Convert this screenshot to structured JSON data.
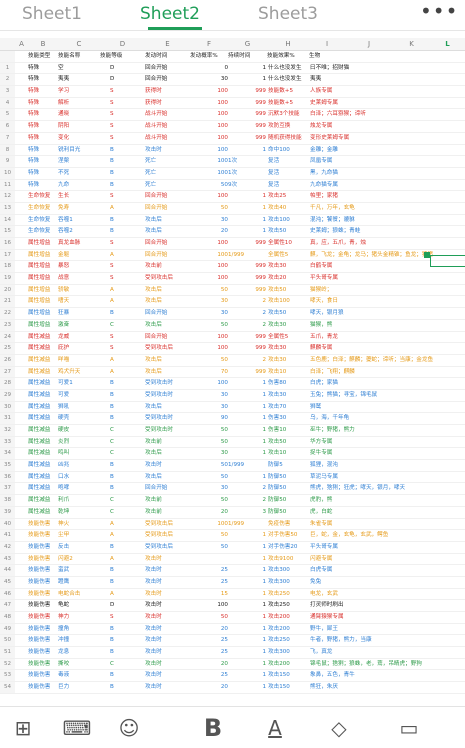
{
  "sheet_tabs": [
    "Sheet1",
    "Sheet2",
    "Sheet3"
  ],
  "active_tab": "Sheet2",
  "more_label": "•••",
  "columns": [
    "A",
    "B",
    "C",
    "D",
    "E",
    "F",
    "G",
    "H",
    "I",
    "J",
    "K",
    "L"
  ],
  "selected_column": "L",
  "headers": [
    "技能类型",
    "技能名称",
    "技能等级",
    "发动时间",
    "发动概率%",
    "持续时间",
    "技能效果%",
    "生物"
  ],
  "colors": {
    "black": "#222222",
    "red": "#d9302c",
    "blue": "#2f7fd3",
    "green": "#2e9b4a",
    "orange": "#e59a18",
    "accent": "#1f9e58"
  },
  "rows": [
    {
      "n": "1",
      "t": "特殊",
      "name": "空",
      "lvl": "D",
      "time": "回合开始",
      "prob": "0",
      "dur": "",
      "eff": "1",
      "bio": "什么也没发生",
      "extra": "曰不唯；招财猫",
      "c": "black"
    },
    {
      "n": "2",
      "t": "特殊",
      "name": "夷夷",
      "lvl": "D",
      "time": "回合开始",
      "prob": "30",
      "dur": "",
      "eff": "1",
      "bio": "什么也没发生",
      "extra": "夷夷",
      "c": "black"
    },
    {
      "n": "3",
      "t": "特殊",
      "name": "学习",
      "lvl": "S",
      "time": "获得时",
      "prob": "100",
      "dur": "",
      "eff": "999",
      "bio": "技能数+5",
      "extra": "人族专属",
      "c": "red"
    },
    {
      "n": "4",
      "t": "特殊",
      "name": "解析",
      "lvl": "S",
      "time": "获得时",
      "prob": "100",
      "dur": "",
      "eff": "999",
      "bio": "技能数+5",
      "extra": "史莱姆专属",
      "c": "red"
    },
    {
      "n": "5",
      "t": "特殊",
      "name": "通晓",
      "lvl": "S",
      "time": "战斗开始",
      "prob": "100",
      "dur": "",
      "eff": "999",
      "bio": "沉默3个技能",
      "extra": "白泽；六耳猕猴；谛听",
      "c": "red"
    },
    {
      "n": "6",
      "t": "特殊",
      "name": "阴阳",
      "lvl": "S",
      "time": "战斗开始",
      "prob": "100",
      "dur": "",
      "eff": "999",
      "bio": "攻防互换",
      "extra": "烛龙专属",
      "c": "red"
    },
    {
      "n": "7",
      "t": "特殊",
      "name": "变化",
      "lvl": "S",
      "time": "战斗开始",
      "prob": "100",
      "dur": "",
      "eff": "999",
      "bio": "随机获得技能",
      "extra": "变形史莱姆专属",
      "c": "red"
    },
    {
      "n": "8",
      "t": "特殊",
      "name": "锐利目光",
      "lvl": "B",
      "time": "攻击时",
      "prob": "100",
      "dur": "",
      "eff": "1",
      "bio": "命中100",
      "extra": "金雕；金雕",
      "c": "blue"
    },
    {
      "n": "9",
      "t": "特殊",
      "name": "涅槃",
      "lvl": "B",
      "time": "死亡",
      "prob": "100",
      "dur": "1次",
      "eff": "",
      "bio": "复活",
      "extra": "凤凰专属",
      "c": "blue"
    },
    {
      "n": "10",
      "t": "特殊",
      "name": "不死",
      "lvl": "B",
      "time": "死亡",
      "prob": "100",
      "dur": "1次",
      "eff": "",
      "bio": "复活",
      "extra": "黑，九命猫",
      "c": "blue"
    },
    {
      "n": "11",
      "t": "特殊",
      "name": "九命",
      "lvl": "B",
      "time": "死亡",
      "prob": "50",
      "dur": "9次",
      "eff": "",
      "bio": "复活",
      "extra": "九命猫专属",
      "c": "blue"
    },
    {
      "n": "12",
      "t": "生命恢复",
      "name": "生长",
      "lvl": "S",
      "time": "回合开始",
      "prob": "100",
      "dur": "",
      "eff": "1",
      "bio": "攻击25",
      "extra": "帕里；家猪",
      "c": "red"
    },
    {
      "n": "13",
      "t": "生命恢复",
      "name": "免寿",
      "lvl": "A",
      "time": "回合开始",
      "prob": "50",
      "dur": "",
      "eff": "1",
      "bio": "攻击40",
      "extra": "千凡，万年，玄龟",
      "c": "orange"
    },
    {
      "n": "14",
      "t": "生命恢复",
      "name": "吞噬1",
      "lvl": "B",
      "time": "攻击后",
      "prob": "30",
      "dur": "",
      "eff": "1",
      "bio": "攻击100",
      "extra": "混沌；饕餮；貔貅",
      "c": "blue"
    },
    {
      "n": "15",
      "t": "生命恢复",
      "name": "吞噬2",
      "lvl": "B",
      "time": "攻击后",
      "prob": "20",
      "dur": "",
      "eff": "1",
      "bio": "攻击50",
      "extra": "史莱姆；狼蛛；青蛙",
      "c": "blue"
    },
    {
      "n": "16",
      "t": "属性增益",
      "name": "真龙血脉",
      "lvl": "S",
      "time": "回合开始",
      "prob": "100",
      "dur": "",
      "eff": "999",
      "bio": "全属性10",
      "extra": "真，应，五爪，青，烛",
      "c": "red"
    },
    {
      "n": "17",
      "t": "属性增益",
      "name": "金躯",
      "lvl": "A",
      "time": "回合开始",
      "prob": "100",
      "dur": "1/999",
      "eff": "",
      "bio": "全属性5",
      "extra": "麒，飞龙；金龟；龙马；猪头金精锥；鱼龙；猪猪",
      "c": "orange"
    },
    {
      "n": "18",
      "t": "属性增益",
      "name": "暴怒",
      "lvl": "S",
      "time": "攻击前",
      "prob": "100",
      "dur": "",
      "eff": "999",
      "bio": "攻击30",
      "extra": "白鹤专属",
      "c": "red"
    },
    {
      "n": "19",
      "t": "属性增益",
      "name": "战意",
      "lvl": "S",
      "time": "受到攻击后",
      "prob": "100",
      "dur": "",
      "eff": "999",
      "bio": "攻击20",
      "extra": "平头哥专属",
      "c": "red"
    },
    {
      "n": "20",
      "t": "属性增益",
      "name": "骄敏",
      "lvl": "A",
      "time": "攻击后",
      "prob": "50",
      "dur": "",
      "eff": "999",
      "bio": "攻击50",
      "extra": "猫猴岭；",
      "c": "orange"
    },
    {
      "n": "21",
      "t": "属性增益",
      "name": "嗜天",
      "lvl": "A",
      "time": "攻击后",
      "prob": "30",
      "dur": "",
      "eff": "2",
      "bio": "攻击100",
      "extra": "哮天，食日",
      "c": "orange"
    },
    {
      "n": "22",
      "t": "属性增益",
      "name": "狂暴",
      "lvl": "B",
      "time": "回合开始",
      "prob": "30",
      "dur": "",
      "eff": "2",
      "bio": "攻击50",
      "extra": "哮天，银月狼",
      "c": "blue"
    },
    {
      "n": "23",
      "t": "属性增益",
      "name": "激奋",
      "lvl": "C",
      "time": "攻击后",
      "prob": "50",
      "dur": "",
      "eff": "2",
      "bio": "攻击30",
      "extra": "猫猴，熊",
      "c": "green"
    },
    {
      "n": "24",
      "t": "属性减益",
      "name": "龙威",
      "lvl": "S",
      "time": "回合开始",
      "prob": "100",
      "dur": "",
      "eff": "999",
      "bio": "全属性5",
      "extra": "五爪，青龙",
      "c": "red"
    },
    {
      "n": "25",
      "t": "属性减益",
      "name": "庇护",
      "lvl": "S",
      "time": "受到攻击后",
      "prob": "100",
      "dur": "",
      "eff": "999",
      "bio": "攻击30",
      "extra": "麒麟专属",
      "c": "red"
    },
    {
      "n": "26",
      "t": "属性减益",
      "name": "咩喵",
      "lvl": "A",
      "time": "攻击后",
      "prob": "50",
      "dur": "",
      "eff": "2",
      "bio": "攻击30",
      "extra": "五色鹿；白泽；麒麟；夔蛇；谛听；当康；金龙鱼",
      "c": "orange"
    },
    {
      "n": "27",
      "t": "属性减益",
      "name": "鸡犬升天",
      "lvl": "A",
      "time": "攻击后",
      "prob": "70",
      "dur": "",
      "eff": "999",
      "bio": "攻击10",
      "extra": "白泽；飞翔；麒麟",
      "c": "orange"
    },
    {
      "n": "28",
      "t": "属性减益",
      "name": "可爱1",
      "lvl": "B",
      "time": "受到攻击时",
      "prob": "100",
      "dur": "",
      "eff": "1",
      "bio": "伤害80",
      "extra": "白虎；家猫",
      "c": "blue"
    },
    {
      "n": "29",
      "t": "属性减益",
      "name": "可爱",
      "lvl": "B",
      "time": "受到攻击时",
      "prob": "30",
      "dur": "",
      "eff": "1",
      "bio": "攻击30",
      "extra": "玉兔；熊猫；寻宝，锦毛鼠",
      "c": "blue"
    },
    {
      "n": "30",
      "t": "属性减益",
      "name": "狮吼",
      "lvl": "B",
      "time": "攻击后",
      "prob": "30",
      "dur": "",
      "eff": "1",
      "bio": "攻击70",
      "extra": "狮鹫",
      "c": "blue"
    },
    {
      "n": "31",
      "t": "属性减益",
      "name": "硬壳",
      "lvl": "B",
      "time": "受到攻击时",
      "prob": "90",
      "dur": "",
      "eff": "1",
      "bio": "伤害30",
      "extra": "乌，海，千年龟",
      "c": "blue"
    },
    {
      "n": "32",
      "t": "属性减益",
      "name": "硬皮",
      "lvl": "C",
      "time": "受到攻击时",
      "prob": "50",
      "dur": "",
      "eff": "1",
      "bio": "伤害10",
      "extra": "巫牛；野猪，熊力",
      "c": "green"
    },
    {
      "n": "33",
      "t": "属性减益",
      "name": "炎烈",
      "lvl": "C",
      "time": "攻击前",
      "prob": "50",
      "dur": "",
      "eff": "1",
      "bio": "攻击50",
      "extra": "华方专属",
      "c": "green"
    },
    {
      "n": "34",
      "t": "属性减益",
      "name": "鸣叫",
      "lvl": "C",
      "time": "攻击后",
      "prob": "30",
      "dur": "",
      "eff": "1",
      "bio": "攻击10",
      "extra": "捉牛专属",
      "c": "green"
    },
    {
      "n": "35",
      "t": "属性减益",
      "name": "凶兆",
      "lvl": "B",
      "time": "攻击时",
      "prob": "50",
      "dur": "1/999",
      "eff": "",
      "bio": "防御5",
      "extra": "狐狸，混沌",
      "c": "blue"
    },
    {
      "n": "36",
      "t": "属性减益",
      "name": "口水",
      "lvl": "B",
      "time": "攻击后",
      "prob": "50",
      "dur": "",
      "eff": "1",
      "bio": "防御50",
      "extra": "草泥马专属",
      "c": "blue"
    },
    {
      "n": "37",
      "t": "属性减益",
      "name": "咆哮",
      "lvl": "B",
      "time": "回合开始",
      "prob": "30",
      "dur": "",
      "eff": "2",
      "bio": "防御50",
      "extra": "熊虎，猞猁；狂虎；哮天，银月，哮天",
      "c": "blue"
    },
    {
      "n": "38",
      "t": "属性减益",
      "name": "利爪",
      "lvl": "C",
      "time": "攻击前",
      "prob": "50",
      "dur": "",
      "eff": "2",
      "bio": "防御50",
      "extra": "虎豹，熊",
      "c": "green"
    },
    {
      "n": "39",
      "t": "属性减益",
      "name": "乾坤",
      "lvl": "C",
      "time": "攻击前",
      "prob": "20",
      "dur": "",
      "eff": "3",
      "bio": "防御50",
      "extra": "虎，白蛇",
      "c": "green"
    },
    {
      "n": "40",
      "t": "技能伤害",
      "name": "神火",
      "lvl": "A",
      "time": "受到攻击后",
      "prob": "100",
      "dur": "1/999",
      "eff": "",
      "bio": "免疫伤害",
      "extra": "朱雀专属",
      "c": "orange"
    },
    {
      "n": "41",
      "t": "技能伤害",
      "name": "尘甲",
      "lvl": "A",
      "time": "受到攻击后",
      "prob": "50",
      "dur": "",
      "eff": "1",
      "bio": "对手伤害50",
      "extra": "巨，蛇，金，玄龟，玄武，鳄鱼",
      "c": "orange"
    },
    {
      "n": "42",
      "t": "技能伤害",
      "name": "反击",
      "lvl": "B",
      "time": "受到攻击后",
      "prob": "50",
      "dur": "",
      "eff": "1",
      "bio": "对手伤害20",
      "extra": "平头哥专属",
      "c": "blue"
    },
    {
      "n": "43",
      "t": "技能伤害",
      "name": "闪避2",
      "lvl": "A",
      "time": "攻击时",
      "prob": "",
      "dur": "",
      "eff": "1",
      "bio": "攻击9100",
      "extra": "闪避专属",
      "c": "orange"
    },
    {
      "n": "44",
      "t": "技能伤害",
      "name": "蛮武",
      "lvl": "B",
      "time": "攻击时",
      "prob": "25",
      "dur": "",
      "eff": "1",
      "bio": "攻击300",
      "extra": "白虎专属",
      "c": "blue"
    },
    {
      "n": "45",
      "t": "技能伤害",
      "name": "蹬鹰",
      "lvl": "B",
      "time": "攻击时",
      "prob": "25",
      "dur": "",
      "eff": "1",
      "bio": "攻击300",
      "extra": "免兔",
      "c": "blue"
    },
    {
      "n": "46",
      "t": "技能伤害",
      "name": "电蛇合击",
      "lvl": "A",
      "time": "攻击时",
      "prob": "15",
      "dur": "",
      "eff": "1",
      "bio": "攻击250",
      "extra": "电龙，玄武",
      "c": "orange"
    },
    {
      "n": "47",
      "t": "技能伤害",
      "name": "龟蛇",
      "lvl": "D",
      "time": "攻击时",
      "prob": "100",
      "dur": "",
      "eff": "1",
      "bio": "攻击250",
      "extra": "打灵师时刷出",
      "c": "black"
    },
    {
      "n": "48",
      "t": "技能伤害",
      "name": "神力",
      "lvl": "S",
      "time": "攻击时",
      "prob": "50",
      "dur": "",
      "eff": "1",
      "bio": "攻击200",
      "extra": "通臂猿猴专属",
      "c": "red"
    },
    {
      "n": "49",
      "t": "技能伤害",
      "name": "撞角",
      "lvl": "B",
      "time": "攻击时",
      "prob": "20",
      "dur": "",
      "eff": "1",
      "bio": "攻击200",
      "extra": "野牛，犀王",
      "c": "blue"
    },
    {
      "n": "50",
      "t": "技能伤害",
      "name": "冲撞",
      "lvl": "B",
      "time": "攻击时",
      "prob": "25",
      "dur": "",
      "eff": "1",
      "bio": "攻击250",
      "extra": "牛者，野猪，熊力，当康",
      "c": "blue"
    },
    {
      "n": "51",
      "t": "技能伤害",
      "name": "龙息",
      "lvl": "B",
      "time": "攻击时",
      "prob": "25",
      "dur": "",
      "eff": "1",
      "bio": "攻击300",
      "extra": "飞，真龙",
      "c": "blue"
    },
    {
      "n": "52",
      "t": "技能伤害",
      "name": "撕咬",
      "lvl": "C",
      "time": "攻击时",
      "prob": "20",
      "dur": "",
      "eff": "1",
      "bio": "攻击200",
      "extra": "锦毛鼠；猞猁；狼蛛，老，蔫，吊睛虎；野狗",
      "c": "green"
    },
    {
      "n": "53",
      "t": "技能伤害",
      "name": "毒液",
      "lvl": "B",
      "time": "攻击时",
      "prob": "25",
      "dur": "",
      "eff": "1",
      "bio": "攻击150",
      "extra": "象鼻，五色，青牛",
      "c": "blue"
    },
    {
      "n": "54",
      "t": "技能伤害",
      "name": "巨力",
      "lvl": "B",
      "time": "攻击时",
      "prob": "20",
      "dur": "",
      "eff": "1",
      "bio": "攻击150",
      "extra": "熊狂，朱厌",
      "c": "blue"
    },
    {
      "n": "55",
      "t": "技能伤害",
      "name": "炫击",
      "lvl": "B",
      "time": "攻击时",
      "prob": "20",
      "dur": "",
      "eff": "1",
      "bio": "攻击150",
      "extra": "熊，狼",
      "c": "blue"
    },
    {
      "n": "56",
      "t": "技能伤害",
      "name": "啄击",
      "lvl": "D",
      "time": "攻击时",
      "prob": "20",
      "dur": "",
      "eff": "1",
      "bio": "攻击150",
      "extra": "鸡，白鹤，鹅",
      "c": "black"
    },
    {
      "n": "57",
      "t": "技能伤害",
      "name": "大力",
      "lvl": "C",
      "time": "攻击时",
      "prob": "20",
      "dur": "",
      "eff": "1",
      "bio": "攻击120",
      "extra": "山熊，通臂猿",
      "c": "green"
    },
    {
      "n": "58",
      "t": "辅助控制",
      "name": "光芒",
      "lvl": "S",
      "time": "受到攻击时",
      "prob": "50",
      "dur": "",
      "eff": "1",
      "bio": "闪避",
      "extra": "金乌专属",
      "c": "red"
    },
    {
      "n": "59",
      "t": "辅助控制",
      "name": "高飞",
      "lvl": "S",
      "time": "受到攻击时",
      "prob": "50",
      "dur": "",
      "eff": "1",
      "bio": "闪避",
      "extra": "鸿鹄专属",
      "c": "red"
    }
  ],
  "toolbar": [
    {
      "name": "apps-grid-icon",
      "glyph": "⊞"
    },
    {
      "name": "keyboard-icon",
      "glyph": "⌨"
    },
    {
      "name": "emoji-icon",
      "glyph": "☺"
    },
    {
      "name": "bold-icon",
      "glyph": "B"
    },
    {
      "name": "font-color-icon",
      "glyph": "A"
    },
    {
      "name": "fill-color-icon",
      "glyph": "◇"
    },
    {
      "name": "more-tools-icon",
      "glyph": "▭"
    }
  ]
}
